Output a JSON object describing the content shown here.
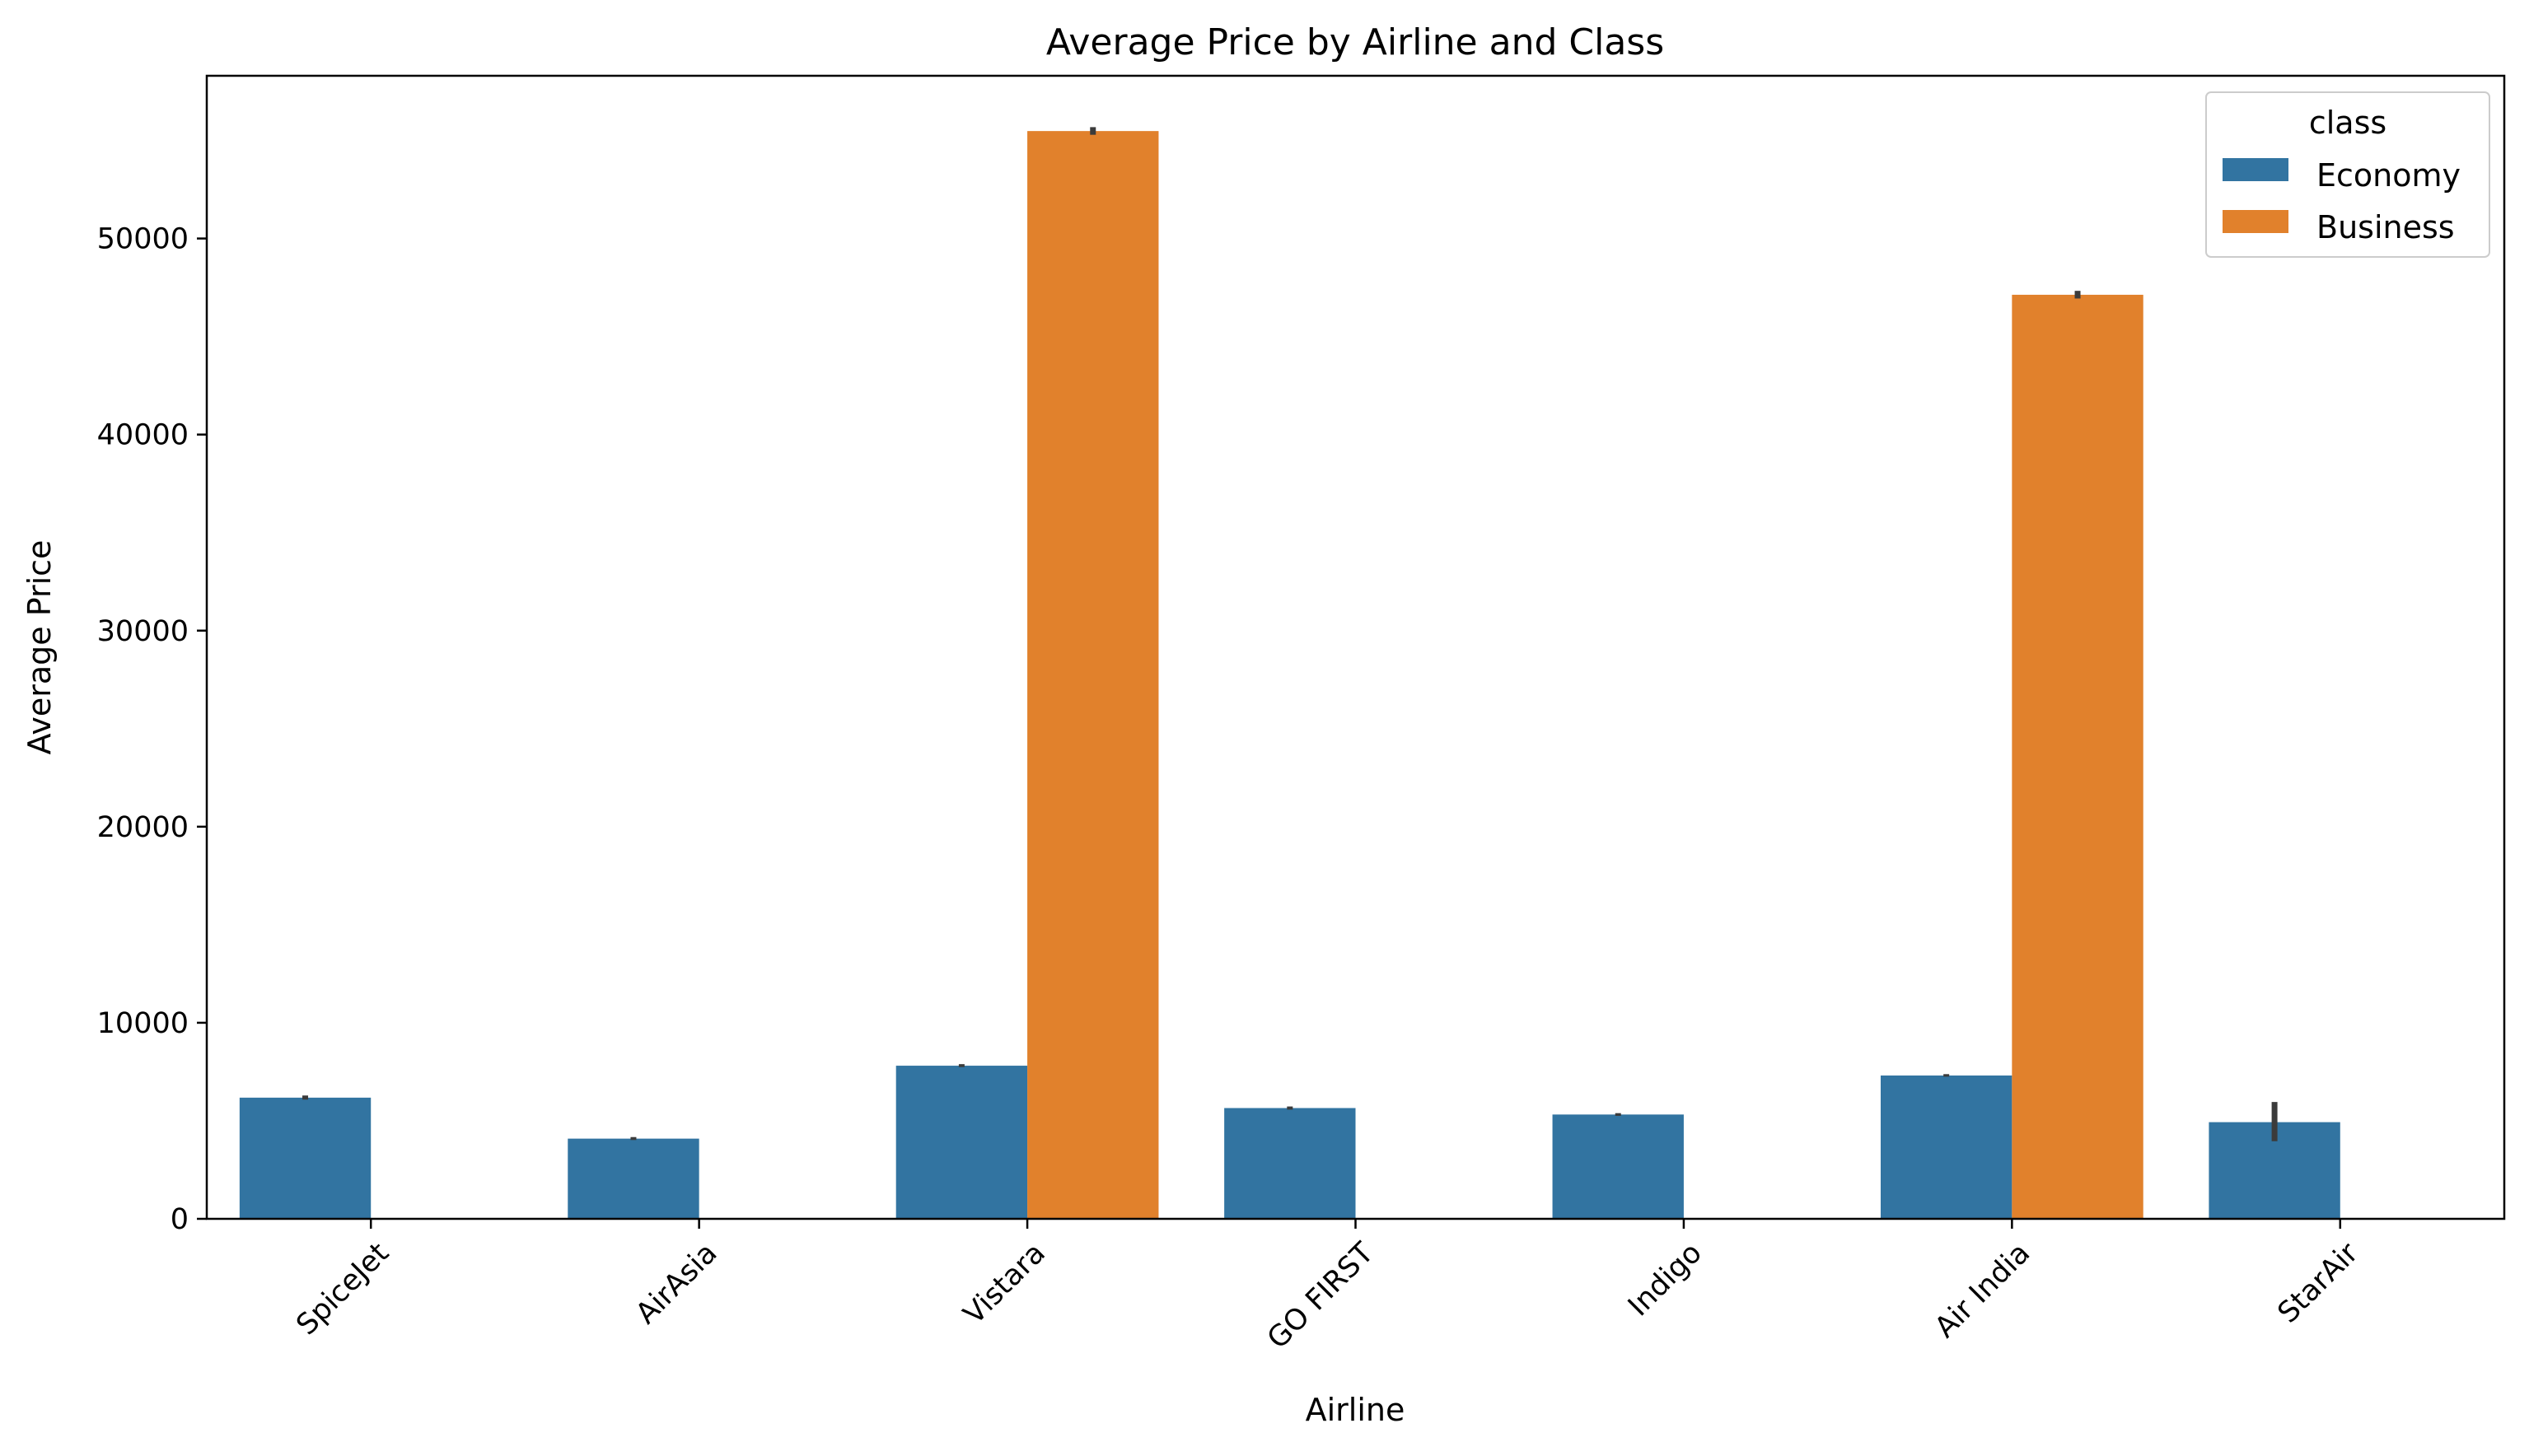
{
  "chart_data": {
    "type": "bar",
    "title": "Average Price by Airline and Class",
    "xlabel": "Airline",
    "ylabel": "Average Price",
    "categories": [
      "SpiceJet",
      "AirAsia",
      "Vistara",
      "GO FIRST",
      "Indigo",
      "Air India",
      "StarAir"
    ],
    "series": [
      {
        "name": "Economy",
        "color": "#3274a1",
        "values": [
          6180,
          4090,
          7810,
          5650,
          5320,
          7310,
          4930
        ],
        "error_low": [
          6080,
          4020,
          7740,
          5570,
          5250,
          7250,
          3960
        ],
        "error_high": [
          6290,
          4170,
          7890,
          5730,
          5390,
          7380,
          5960
        ]
      },
      {
        "name": "Business",
        "color": "#e1812c",
        "values": [
          null,
          null,
          55480,
          null,
          null,
          47130,
          null
        ],
        "error_low": [
          null,
          null,
          55290,
          null,
          null,
          46940,
          null
        ],
        "error_high": [
          null,
          null,
          55680,
          null,
          null,
          47330,
          null
        ]
      }
    ],
    "yticks": [
      0,
      10000,
      20000,
      30000,
      40000,
      50000
    ],
    "ylim": [
      0,
      58300
    ],
    "xtick_rotation": 45,
    "legend": {
      "title": "class",
      "placement": "top-right",
      "entries": [
        "Economy",
        "Business"
      ]
    },
    "grid": false,
    "error_bar_color": "#3b3b3b"
  }
}
